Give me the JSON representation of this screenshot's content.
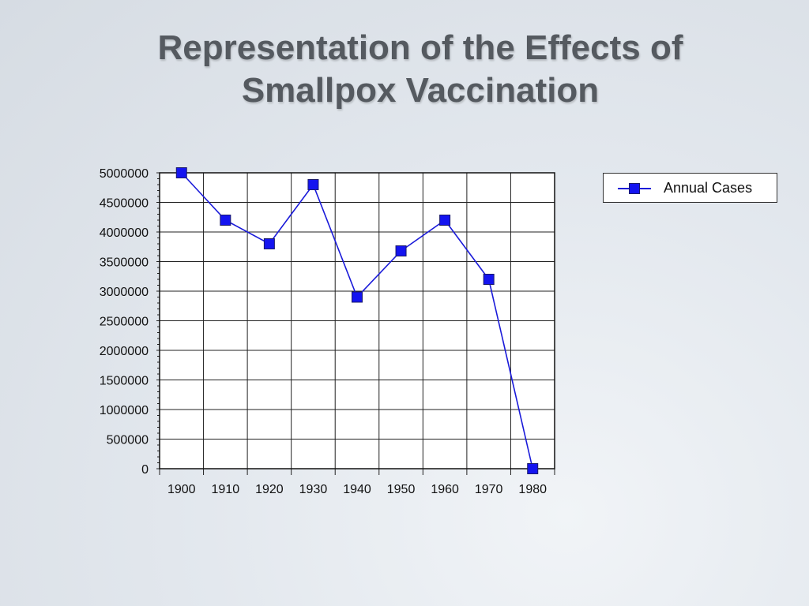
{
  "slide": {
    "title_line1": "Representation of the Effects of",
    "title_line2": "Smallpox Vaccination"
  },
  "colors": {
    "series": "#1a1ad9",
    "marker": "#1414f0",
    "title": "#555a60",
    "grid": "#222222"
  },
  "chart_data": {
    "type": "line",
    "title": "",
    "xlabel": "",
    "ylabel": "",
    "x": [
      1900,
      1910,
      1920,
      1930,
      1940,
      1950,
      1960,
      1970,
      1980
    ],
    "x_tick_labels": [
      "1900",
      "1910",
      "1920",
      "1930",
      "1940",
      "1950",
      "1960",
      "1970",
      "1980"
    ],
    "series": [
      {
        "name": "Annual Cases",
        "values": [
          5000000,
          4200000,
          3800000,
          4800000,
          2900000,
          3680000,
          4200000,
          3200000,
          0
        ],
        "marker": "square"
      }
    ],
    "ylim": [
      0,
      5000000
    ],
    "y_tick_labels": [
      "0",
      "500000",
      "1000000",
      "1500000",
      "2000000",
      "2500000",
      "3000000",
      "3500000",
      "4000000",
      "4500000",
      "5000000"
    ],
    "grid": true,
    "legend_position": "right"
  }
}
